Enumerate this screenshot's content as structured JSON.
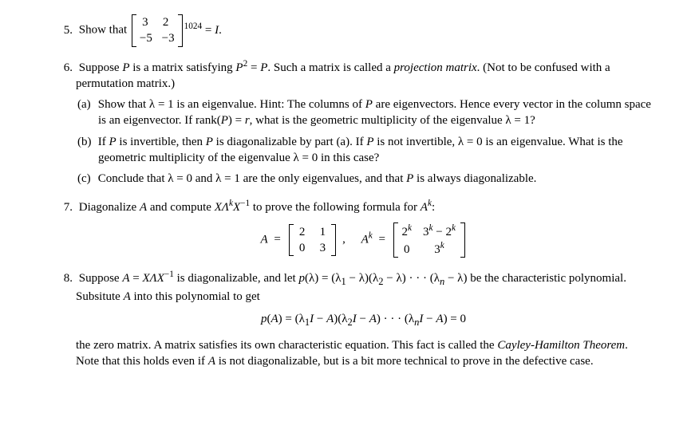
{
  "p5": {
    "num": "5.",
    "lead": "Show that",
    "m": {
      "r1c1": "3",
      "r1c2": "2",
      "r2c1": "−5",
      "r2c2": "−3"
    },
    "exp": "1024",
    "eq": "= ",
    "I": "I",
    "dot": "."
  },
  "p6": {
    "num": "6.",
    "text1": "Suppose ",
    "P": "P",
    "text2": " is a matrix satisfying ",
    "eq": "P",
    "eqsup": "2",
    "text2b": " = ",
    "P2": "P",
    "text3": ". Such a matrix is called a ",
    "term": "projection matrix",
    "text4": ". (Not to be confused with a permutation matrix.)",
    "a": {
      "num": "(a)",
      "text": "Show that λ = 1 is an eigenvalue.  Hint: The columns of ",
      "P": "P",
      "text2": " are eigenvectors.  Hence every vector in the column space is an eigenvector. If rank(",
      "P2": "P",
      "text3": ") = ",
      "r": "r",
      "text4": ", what is the geometric multiplicity of the eigenvalue λ = 1?"
    },
    "b": {
      "num": "(b)",
      "text": "If ",
      "P": "P",
      "text2": " is invertible, then ",
      "P2": "P",
      "text3": " is diagonalizable by part (a). If ",
      "P3": "P",
      "text4": " is not invertible, λ = 0 is an eigenvalue. What is the geometric multiplicity of the eigenvalue λ = 0 in this case?"
    },
    "c": {
      "num": "(c)",
      "text": "Conclude that λ = 0 and λ = 1 are the only eigenvalues, and that ",
      "P": "P",
      "text2": " is always diagonalizable."
    }
  },
  "p7": {
    "num": "7.",
    "text": "Diagonalize ",
    "A": "A",
    "text2": " and compute ",
    "expr": "XΛ",
    "k": "k",
    "expr2": "X",
    "neg1": "−1",
    "text3": " to prove the following formula for ",
    "Ak": "A",
    "ksup": "k",
    "colon": ":",
    "Aeq": "A",
    "eqs": "=",
    "mA": {
      "r1c1": "2",
      "r1c2": "1",
      "r2c1": "0",
      "r2c2": "3"
    },
    "comma": ",",
    "Akeq": "A",
    "eqs2": "=",
    "mAk": {
      "r1c1a": "2",
      "r1c1b": "k",
      "r1c2a": "3",
      "r1c2b": "k",
      "r1c2c": " − 2",
      "r1c2d": "k",
      "r2c1": "0",
      "r2c2a": "3",
      "r2c2b": "k"
    }
  },
  "p8": {
    "num": "8.",
    "text": "Suppose ",
    "A": "A",
    "text2": " = ",
    "expr": "XΛX",
    "neg1": "−1",
    "text3": " is diagonalizable, and let ",
    "p": "p",
    "text4": "(λ) = (λ",
    "s1": "1",
    "text5": " − λ)(λ",
    "s2": "2",
    "text6": " − λ) · · · (λ",
    "sn": "n",
    "text7": " − λ) be the characteristic polynomial. Subsitute ",
    "A2": "A",
    "text8": " into this polynomial to get",
    "eqline": {
      "p": "p",
      "lp": "(",
      "A": "A",
      "rp_eq": ") = (λ",
      "s1": "1",
      "I": "I",
      "minus": " − ",
      "A1": "A",
      "rp1": ")(λ",
      "s2": "2",
      "I2": "I",
      "A2": "A",
      "dots": ") · · · (λ",
      "sn": "n",
      "In": "I",
      "An": "A",
      "end": ") = 0"
    },
    "tail1": "the zero matrix.  A matrix satisfies its own characteristic equation.  This fact is called the ",
    "thm": "Cayley-Hamilton Theorem",
    "tail2": ". Note that this holds even if ",
    "A3": "A",
    "tail3": " is not diagonalizable, but is a bit more technical to prove in the defective case."
  }
}
